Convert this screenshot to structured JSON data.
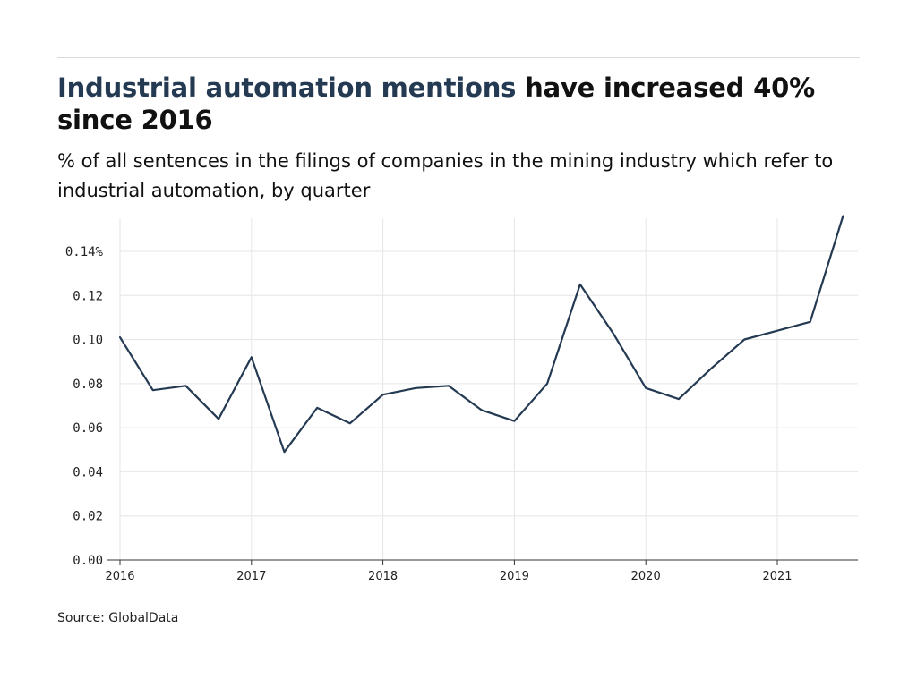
{
  "header": {
    "title_highlight": "Industrial automation mentions",
    "title_rest": " have increased 40% since 2016",
    "subtitle": "% of all sentences in the filings of companies in the mining industry which refer to industrial automation, by quarter"
  },
  "footer": {
    "source": "Source: GlobalData"
  },
  "colors": {
    "line": "#243a52",
    "grid": "#e6e6e6",
    "axis": "#333333",
    "highlight": "#243a52"
  },
  "chart_data": {
    "type": "line",
    "title": "Industrial automation mentions have increased 40% since 2016",
    "subtitle": "% of all sentences in the filings of companies in the mining industry which refer to industrial automation, by quarter",
    "xlabel": "",
    "ylabel": "",
    "ylim": [
      0,
      0.155
    ],
    "xlim": [
      2016,
      2021.5
    ],
    "x_ticks": [
      2016,
      2017,
      2018,
      2019,
      2020,
      2021
    ],
    "x_tick_labels": [
      "2016",
      "2017",
      "2018",
      "2019",
      "2020",
      "2021"
    ],
    "y_ticks": [
      0,
      0.02,
      0.04,
      0.06,
      0.08,
      0.1,
      0.12,
      0.14
    ],
    "y_tick_labels": [
      "0.00",
      "0.02",
      "0.04",
      "0.06",
      "0.08",
      "0.10",
      "0.12",
      "0.14%"
    ],
    "grid": true,
    "series": [
      {
        "x": [
          "2016 Q1",
          "2016 Q2",
          "2016 Q3",
          "2016 Q4",
          "2017 Q1",
          "2017 Q2",
          "2017 Q3",
          "2017 Q4",
          "2018 Q1",
          "2018 Q2",
          "2018 Q3",
          "2018 Q4",
          "2019 Q1",
          "2019 Q2",
          "2019 Q3",
          "2019 Q4",
          "2020 Q1",
          "2020 Q2",
          "2020 Q3",
          "2020 Q4",
          "2021 Q1",
          "2021 Q2",
          "2021 Q3"
        ],
        "values": [
          0.101,
          0.077,
          0.079,
          0.064,
          0.092,
          0.049,
          0.069,
          0.062,
          0.075,
          0.078,
          0.079,
          0.068,
          0.063,
          0.08,
          0.125,
          0.103,
          0.078,
          0.073,
          0.087,
          0.1,
          0.104,
          0.108,
          0.156
        ]
      }
    ]
  }
}
